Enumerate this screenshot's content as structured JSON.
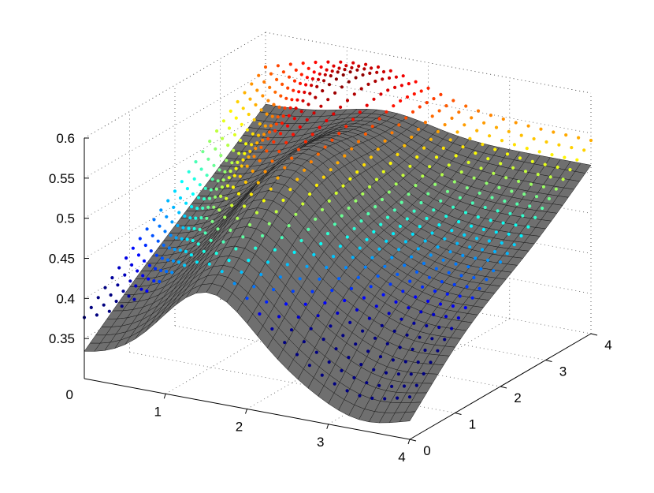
{
  "chart_data": {
    "type": "surface3d",
    "title": "",
    "xlabel": "",
    "ylabel": "",
    "zlabel": "",
    "xlim": [
      0,
      4
    ],
    "ylim": [
      0,
      4
    ],
    "zlim": [
      0.3,
      0.6
    ],
    "grid": true,
    "x_ticks": [
      "1",
      "2",
      "3",
      "4"
    ],
    "y_ticks": [
      "0",
      "1",
      "2",
      "3",
      "4"
    ],
    "z_ticks": [
      "0.35",
      "0.4",
      "0.45",
      "0.5",
      "0.55",
      "0.6"
    ],
    "x_origin_label": "0",
    "surface_color": "#6f6f6f",
    "colormap": "jet",
    "series": [
      {
        "kind": "surface",
        "description_values": {
          "z_at_corners": {
            "x0_y0": 0.36,
            "x4_y0": 0.33,
            "x0_y4": 0.5,
            "x4_y4": 0.54
          },
          "z_peak": 0.58,
          "z_min": 0.33
        }
      },
      {
        "kind": "scatter_points",
        "z_range": [
          0.4,
          0.6
        ]
      }
    ]
  }
}
